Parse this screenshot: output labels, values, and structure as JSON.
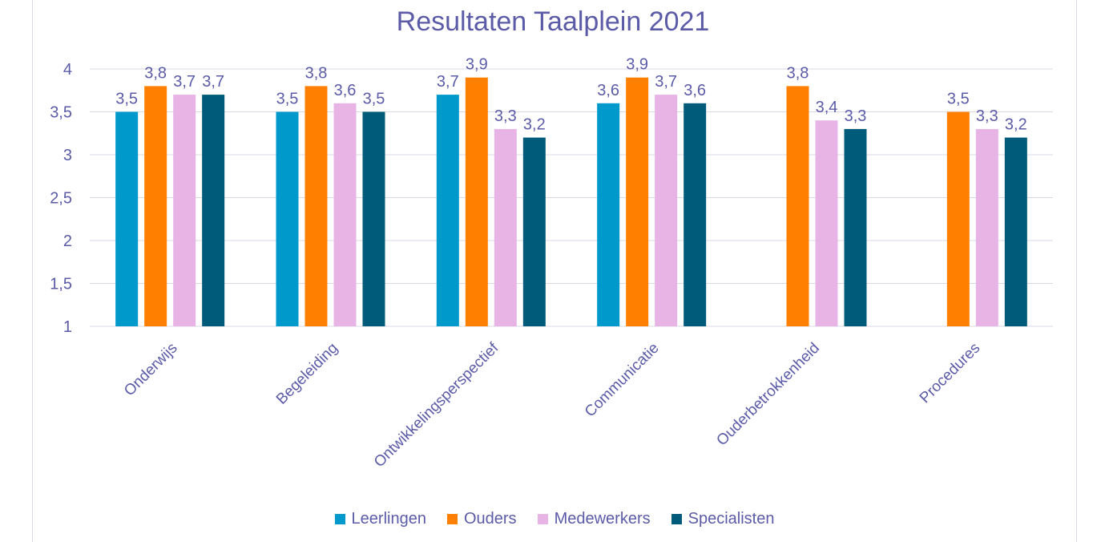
{
  "chart_data": {
    "type": "bar",
    "title": "Resultaten Taalplein 2021",
    "categories": [
      "Onderwijs",
      "Begeleiding",
      "Ontwikkelingsperspectief",
      "Communicatie",
      "Ouderbetrokkenheid",
      "Procedures"
    ],
    "series": [
      {
        "name": "Leerlingen",
        "color": "#0099cc",
        "values": [
          3.5,
          3.5,
          3.7,
          3.6,
          null,
          null
        ]
      },
      {
        "name": "Ouders",
        "color": "#ff7f00",
        "values": [
          3.8,
          3.8,
          3.9,
          3.9,
          3.8,
          3.5
        ]
      },
      {
        "name": "Medewerkers",
        "color": "#e8b4e6",
        "values": [
          3.7,
          3.6,
          3.3,
          3.7,
          3.4,
          3.3
        ]
      },
      {
        "name": "Specialisten",
        "color": "#005b7a",
        "values": [
          3.7,
          3.5,
          3.2,
          3.6,
          3.3,
          3.2
        ]
      }
    ],
    "ylim": [
      1,
      4
    ],
    "yticks": [
      "1",
      "1,5",
      "2",
      "2,5",
      "3",
      "3,5",
      "4"
    ],
    "xlabel": "",
    "ylabel": "",
    "grid": true,
    "legend": "bottom"
  }
}
